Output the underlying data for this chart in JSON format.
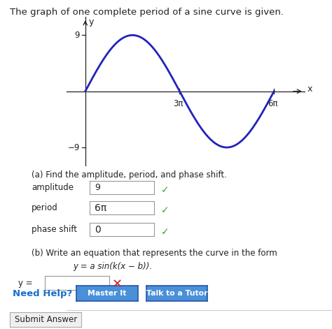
{
  "title": "The graph of one complete period of a sine curve is given.",
  "title_fontsize": 9.5,
  "background_color": "#ffffff",
  "graph_region": {
    "xlim": [
      -0.6,
      7.0
    ],
    "ylim": [
      -12,
      12
    ],
    "amplitude": 9,
    "x_ticks_pi": [
      3,
      6
    ],
    "x_tick_labels": [
      "3π",
      "6π"
    ],
    "y_ticks": [
      9,
      -9
    ],
    "y_tick_labels": [
      "9",
      "−9"
    ],
    "curve_color": "#2222bb",
    "curve_linewidth": 2.0,
    "axis_color": "#222222"
  },
  "part_a": {
    "label": "(a) Find the amplitude, period, and phase shift.",
    "fields": [
      {
        "name": "amplitude",
        "value": "9",
        "correct": true
      },
      {
        "name": "period",
        "value": "6π",
        "correct": true
      },
      {
        "name": "phase shift",
        "value": "0",
        "correct": true
      }
    ]
  },
  "part_b": {
    "label": "(b) Write an equation that represents the curve in the form",
    "equation": "y = a sin(k(x − b)).",
    "y_label": "y =",
    "correct": false
  },
  "need_help": {
    "label": "Need Help?",
    "color": "#1a6fcc",
    "buttons": [
      "Master It",
      "Talk to a Tutor"
    ],
    "button_color": "#4a90d9",
    "button_text_color": "#ffffff"
  },
  "submit_label": "Submit Answer"
}
